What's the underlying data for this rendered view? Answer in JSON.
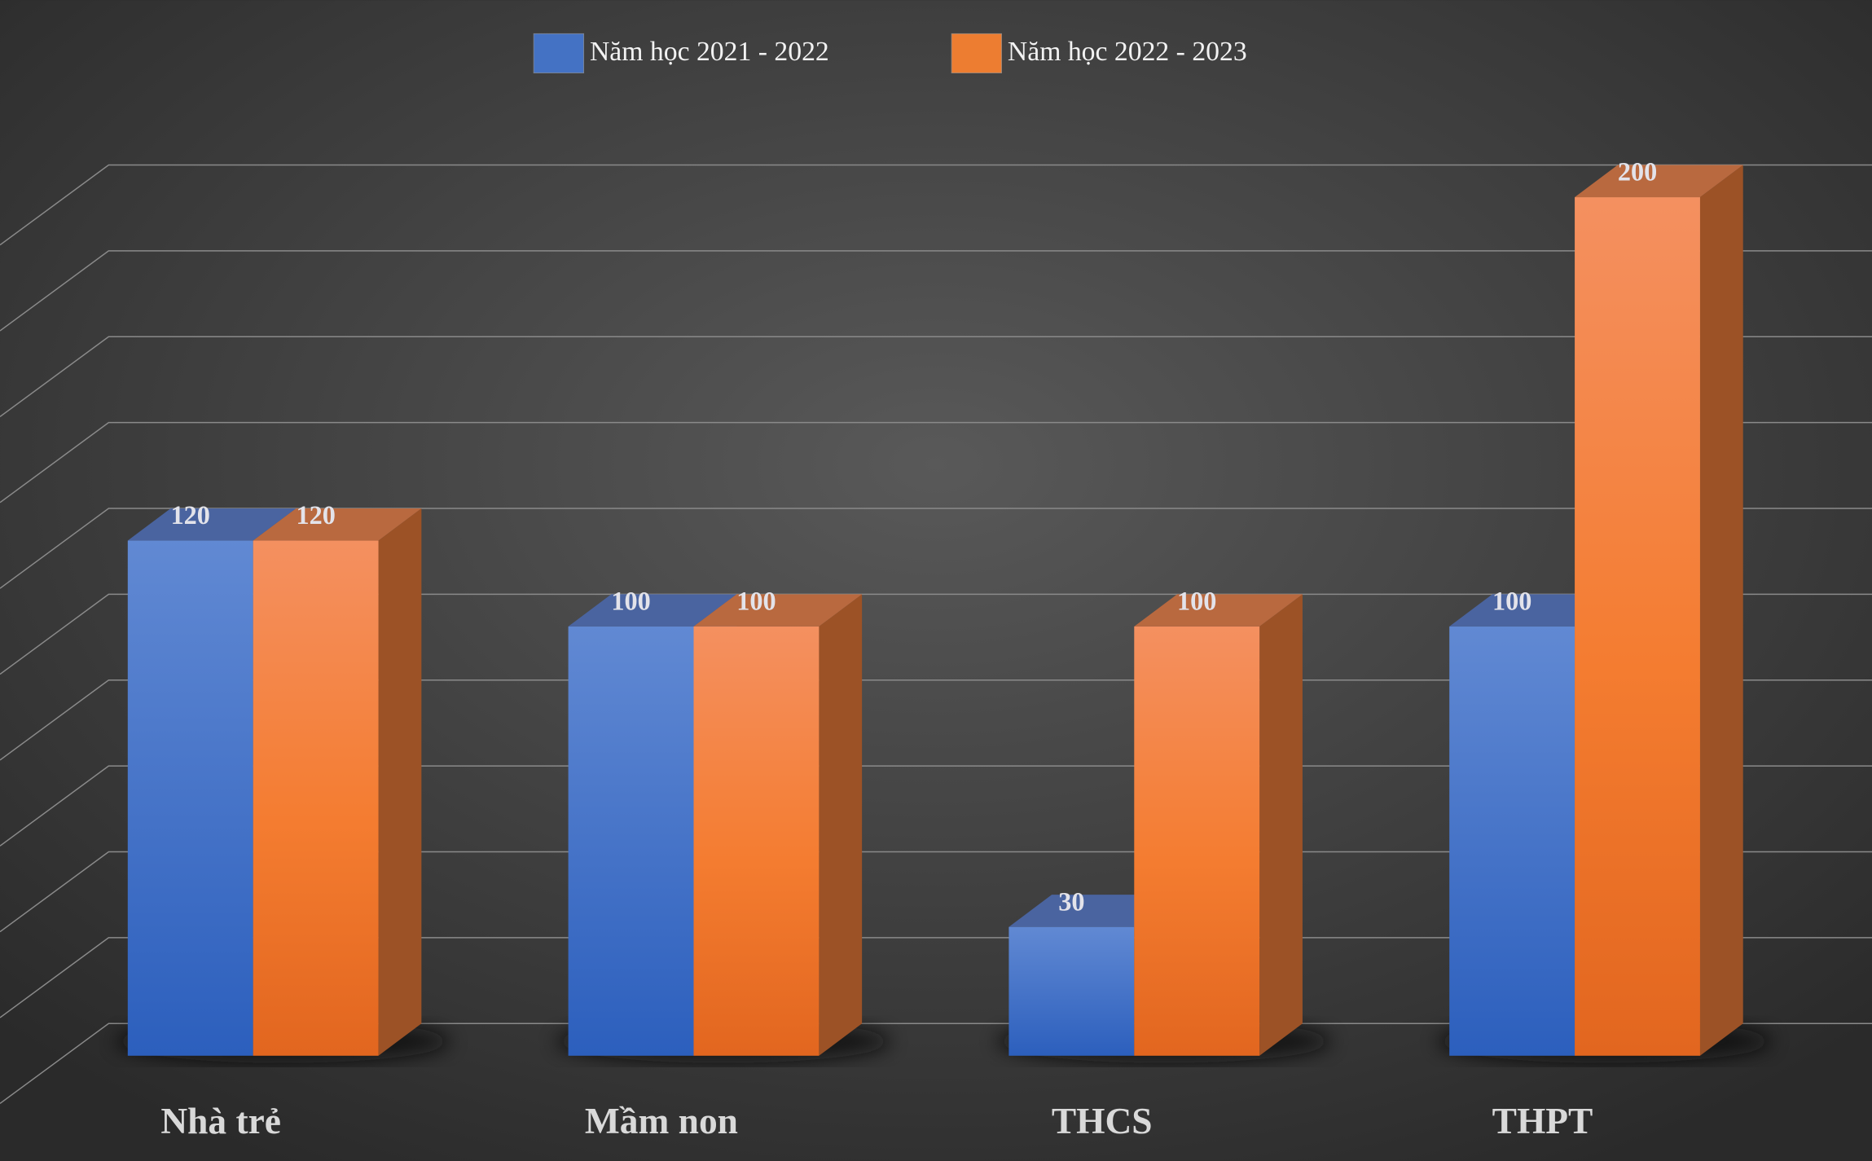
{
  "chart_data": {
    "type": "bar3d",
    "categories": [
      "Nhà trẻ",
      "Mầm non",
      "THCS",
      "THPT"
    ],
    "series": [
      {
        "name": "Năm học 2021 - 2022",
        "color": "#4472c4",
        "values": [
          120,
          100,
          30,
          100
        ]
      },
      {
        "name": "Năm học 2022 - 2023",
        "color": "#ed7d31",
        "values": [
          120,
          100,
          100,
          200
        ]
      }
    ],
    "ylim": [
      0,
      200
    ],
    "yticks": [
      0,
      20,
      40,
      60,
      80,
      100,
      120,
      140,
      160,
      180,
      200
    ],
    "grid": true,
    "legend": "top"
  }
}
